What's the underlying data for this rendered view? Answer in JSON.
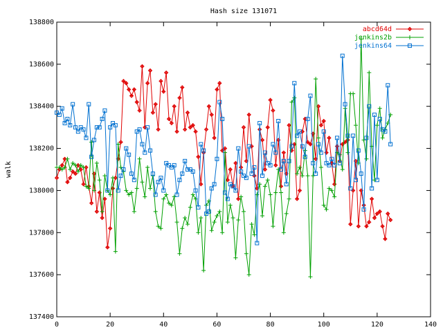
{
  "chart_data": {
    "type": "line",
    "title": "Hash size 131071",
    "ylabel": "walk",
    "legend": "top-right",
    "grid": false,
    "xlim": [
      0,
      140
    ],
    "xticks": [
      0,
      20,
      40,
      60,
      80,
      100,
      120,
      140
    ],
    "ylim": [
      137400,
      138800
    ],
    "yticks": [
      137400,
      137600,
      137800,
      138000,
      138200,
      138400,
      138600,
      138800
    ],
    "x": [
      0,
      1,
      2,
      3,
      4,
      5,
      6,
      7,
      8,
      9,
      10,
      11,
      12,
      13,
      14,
      15,
      16,
      17,
      18,
      19,
      20,
      21,
      22,
      23,
      24,
      25,
      26,
      27,
      28,
      29,
      30,
      31,
      32,
      33,
      34,
      35,
      36,
      37,
      38,
      39,
      40,
      41,
      42,
      43,
      44,
      45,
      46,
      47,
      48,
      49,
      50,
      51,
      52,
      53,
      54,
      55,
      56,
      57,
      58,
      59,
      60,
      61,
      62,
      63,
      64,
      65,
      66,
      67,
      68,
      69,
      70,
      71,
      72,
      73,
      74,
      75,
      76,
      77,
      78,
      79,
      80,
      81,
      82,
      83,
      84,
      85,
      86,
      87,
      88,
      89,
      90,
      91,
      92,
      93,
      94,
      95,
      96,
      97,
      98,
      99,
      100,
      101,
      102,
      103,
      104,
      105,
      106,
      107,
      108,
      109,
      110,
      111,
      112,
      113,
      114,
      115,
      116,
      117,
      118,
      119,
      120,
      121,
      122,
      123,
      124,
      125
    ],
    "series": [
      {
        "name": "abcd64d",
        "color": "#e00000",
        "marker": "diamond",
        "values": [
          138060,
          138100,
          138120,
          138150,
          138040,
          138060,
          138090,
          138080,
          138120,
          138100,
          138030,
          138110,
          138020,
          137940,
          138080,
          137900,
          137990,
          137870,
          137960,
          137730,
          137820,
          138010,
          138060,
          138150,
          138230,
          138520,
          138510,
          138480,
          138450,
          138480,
          138420,
          138380,
          138590,
          138300,
          138510,
          138570,
          138370,
          138410,
          138290,
          138520,
          138470,
          138560,
          138340,
          138320,
          138400,
          138280,
          138440,
          138490,
          138290,
          138370,
          138300,
          138310,
          138280,
          138160,
          138030,
          138180,
          138290,
          138400,
          138360,
          138250,
          138480,
          138510,
          138190,
          138200,
          138050,
          138100,
          138020,
          138130,
          137960,
          138110,
          138300,
          138140,
          138360,
          138210,
          138070,
          138010,
          138290,
          138240,
          138100,
          138300,
          138430,
          138380,
          138120,
          138240,
          138020,
          138180,
          138080,
          138310,
          138190,
          138220,
          137960,
          138000,
          138280,
          138340,
          138230,
          138220,
          138270,
          138150,
          138400,
          138310,
          138330,
          138180,
          138250,
          138130,
          138030,
          138210,
          138140,
          138220,
          138230,
          138240,
          137840,
          138000,
          138140,
          137830,
          138000,
          137930,
          137830,
          137850,
          137960,
          137870,
          137890,
          137900,
          137830,
          137770,
          137890,
          137860
        ]
      },
      {
        "name": "jenkins2b",
        "color": "#00a000",
        "marker": "plus",
        "values": [
          138110,
          138110,
          138100,
          138110,
          138150,
          138100,
          138130,
          138120,
          138090,
          138120,
          138110,
          138020,
          138010,
          138230,
          138000,
          138130,
          138050,
          137900,
          138070,
          138000,
          137980,
          138060,
          137710,
          138220,
          138110,
          138090,
          138000,
          137980,
          137990,
          137900,
          138010,
          138150,
          138040,
          137970,
          138110,
          138010,
          138070,
          137900,
          137830,
          137820,
          137960,
          137980,
          137940,
          137930,
          137970,
          137850,
          137700,
          137820,
          137870,
          137840,
          137920,
          137980,
          137960,
          137800,
          137870,
          137620,
          137930,
          137950,
          137810,
          137850,
          137880,
          137900,
          137800,
          138180,
          137850,
          137930,
          137870,
          137680,
          137860,
          137970,
          137900,
          137700,
          137600,
          137840,
          137790,
          137980,
          138030,
          137880,
          138020,
          138050,
          137980,
          137830,
          137990,
          138100,
          137990,
          137800,
          137890,
          137960,
          138420,
          138440,
          138080,
          138110,
          138070,
          138190,
          138070,
          137590,
          138070,
          138530,
          138250,
          138110,
          137930,
          137910,
          138010,
          138000,
          137970,
          138180,
          138170,
          138100,
          138390,
          138180,
          138460,
          138460,
          138310,
          138130,
          138720,
          138240,
          138150,
          138560,
          138210,
          138050,
          138310,
          138390,
          138250,
          138290,
          138320,
          138360
        ]
      },
      {
        "name": "jenkins64",
        "color": "#0070d0",
        "marker": "square",
        "values": [
          138370,
          138360,
          138390,
          138320,
          138340,
          138310,
          138410,
          138300,
          138280,
          138300,
          138290,
          138250,
          138410,
          138160,
          138240,
          138300,
          138300,
          138340,
          138380,
          138000,
          138300,
          138320,
          138310,
          138000,
          138070,
          138100,
          138200,
          138170,
          138080,
          138050,
          138280,
          138290,
          138220,
          138180,
          138300,
          138190,
          138080,
          137980,
          138040,
          138060,
          138000,
          138130,
          138120,
          138110,
          138120,
          137980,
          138050,
          138080,
          138140,
          138100,
          138100,
          138090,
          138000,
          137920,
          138220,
          138190,
          137890,
          137900,
          138010,
          138030,
          138150,
          138420,
          138340,
          137990,
          137960,
          138030,
          138020,
          138000,
          138200,
          138090,
          138070,
          138060,
          138210,
          138080,
          138110,
          137750,
          138320,
          138070,
          138180,
          138130,
          138120,
          138220,
          138180,
          138330,
          138100,
          138140,
          138030,
          138140,
          138210,
          138510,
          138260,
          138280,
          138210,
          138160,
          138340,
          138450,
          138130,
          138080,
          138220,
          138180,
          138280,
          138130,
          138120,
          138150,
          138120,
          138250,
          138130,
          138640,
          138410,
          138260,
          138010,
          138260,
          138050,
          138190,
          138080,
          137910,
          138250,
          138400,
          138010,
          138360,
          138050,
          138340,
          138290,
          138280,
          138500,
          138220
        ]
      }
    ]
  }
}
